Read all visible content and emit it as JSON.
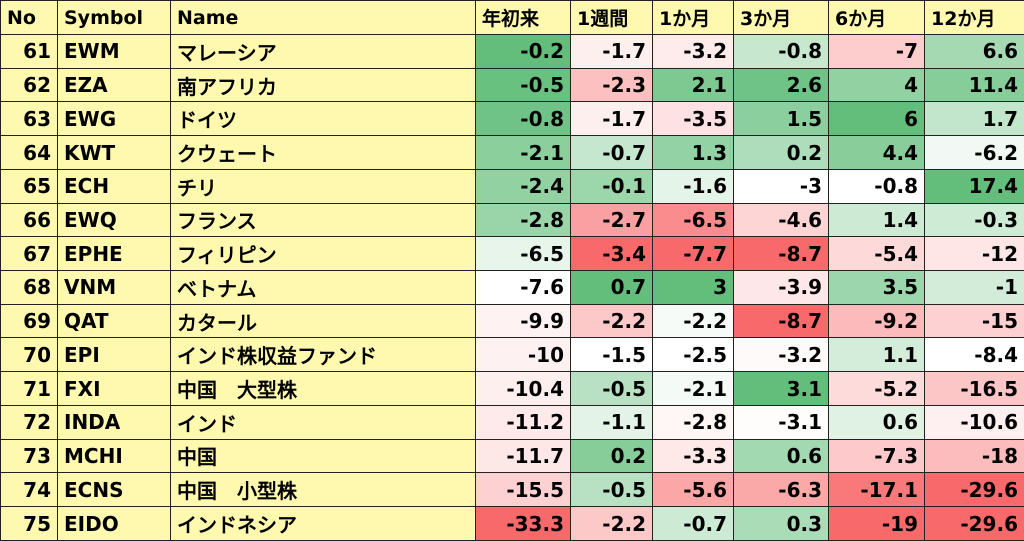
{
  "table": {
    "headers": [
      "No",
      "Symbol",
      "Name",
      "年初来",
      "1週間",
      "1か月",
      "3か月",
      "6か月",
      "12か月"
    ],
    "rows": [
      [
        61,
        "EWM",
        "マレーシア",
        -0.2,
        -1.7,
        -3.2,
        -0.8,
        -7,
        6.6
      ],
      [
        62,
        "EZA",
        "南アフリカ",
        -0.5,
        -2.3,
        2.1,
        2.6,
        4,
        11.4
      ],
      [
        63,
        "EWG",
        "ドイツ",
        -0.8,
        -1.7,
        -3.5,
        1.5,
        6,
        1.7
      ],
      [
        64,
        "KWT",
        "クウェート",
        -2.1,
        -0.7,
        1.3,
        0.2,
        4.4,
        -6.2
      ],
      [
        65,
        "ECH",
        "チリ",
        -2.4,
        -0.1,
        -1.6,
        -3,
        -0.8,
        17.4
      ],
      [
        66,
        "EWQ",
        "フランス",
        -2.8,
        -2.7,
        -6.5,
        -4.6,
        1.4,
        -0.3
      ],
      [
        67,
        "EPHE",
        "フィリピン",
        -6.5,
        -3.4,
        -7.7,
        -8.7,
        -5.4,
        -12
      ],
      [
        68,
        "VNM",
        "ベトナム",
        -7.6,
        0.7,
        3,
        -3.9,
        3.5,
        -1
      ],
      [
        69,
        "QAT",
        "カタール",
        -9.9,
        -2.2,
        -2.2,
        -8.7,
        -9.2,
        -15
      ],
      [
        70,
        "EPI",
        "インド株収益ファンド",
        -10,
        -1.5,
        -2.5,
        -3.2,
        1.1,
        -8.4
      ],
      [
        71,
        "FXI",
        "中国　大型株",
        -10.4,
        -0.5,
        -2.1,
        3.1,
        -5.2,
        -16.5
      ],
      [
        72,
        "INDA",
        "インド",
        -11.2,
        -1.1,
        -2.8,
        -3.1,
        0.6,
        -10.6
      ],
      [
        73,
        "MCHI",
        "中国",
        -11.7,
        0.2,
        -3.3,
        0.6,
        -7.3,
        -18
      ],
      [
        74,
        "ECNS",
        "中国　小型株",
        -15.5,
        -0.5,
        -5.6,
        -6.3,
        -17.1,
        -29.6
      ],
      [
        75,
        "EIDO",
        "インドネシア",
        -33.3,
        -2.2,
        -0.7,
        0.3,
        -19,
        -29.6
      ]
    ]
  }
}
